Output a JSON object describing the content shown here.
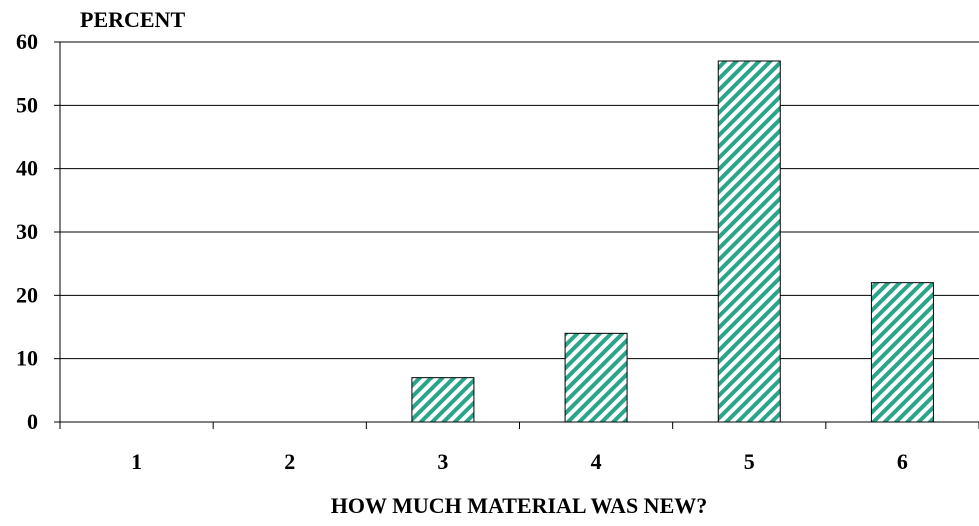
{
  "chart_data": {
    "type": "bar",
    "title": "",
    "ylabel": "PERCENT",
    "xlabel": "HOW MUCH MATERIAL WAS NEW?",
    "categories": [
      "1",
      "2",
      "3",
      "4",
      "5",
      "6"
    ],
    "values": [
      0,
      0,
      7,
      14,
      57,
      22
    ],
    "ylim": [
      0,
      60
    ],
    "yticks": [
      "0",
      "10",
      "20",
      "30",
      "40",
      "50",
      "60"
    ],
    "grid": true,
    "legend": "none",
    "bar_fill": "hatched",
    "colors": {
      "hatch": "#2aa58a",
      "bar_border": "#000000",
      "grid": "#000000"
    }
  }
}
